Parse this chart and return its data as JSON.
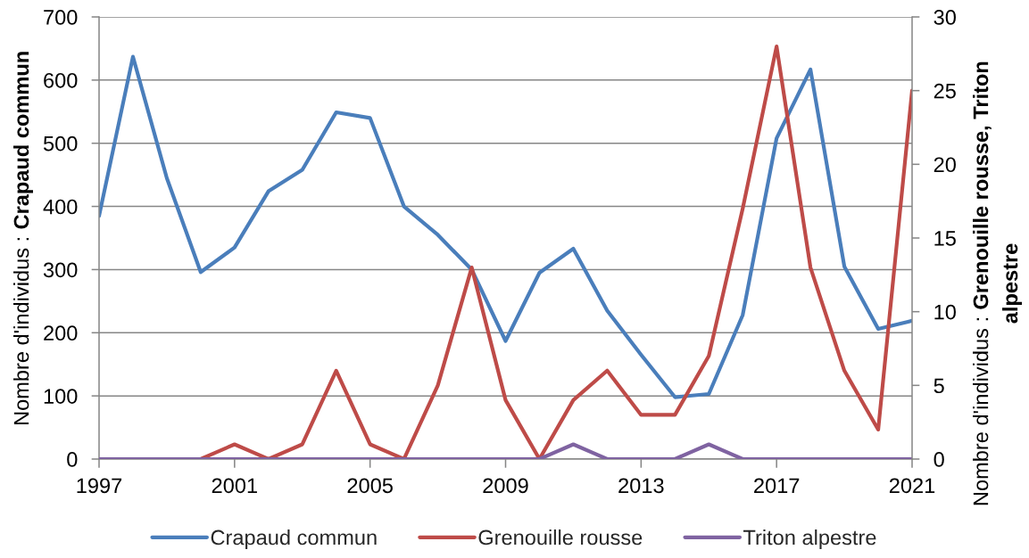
{
  "chart_data": {
    "type": "line",
    "x": [
      1997,
      1998,
      1999,
      2000,
      2001,
      2002,
      2003,
      2004,
      2005,
      2006,
      2007,
      2008,
      2009,
      2010,
      2011,
      2012,
      2013,
      2014,
      2015,
      2016,
      2017,
      2018,
      2019,
      2020,
      2021
    ],
    "xlim": [
      1997,
      2021
    ],
    "xticks": [
      1997,
      2001,
      2005,
      2009,
      2013,
      2017,
      2021
    ],
    "ylim": [
      0,
      700
    ],
    "yticks": [
      0,
      100,
      200,
      300,
      400,
      500,
      600,
      700
    ],
    "y2lim": [
      0,
      30
    ],
    "y2ticks": [
      0,
      5,
      10,
      15,
      20,
      25,
      30
    ],
    "ylabel": "Nombre d'individus : Crapaud commun",
    "y2label": "Nombre d'individus : Grenouille rousse, Triton alpestre",
    "grid": "y",
    "legend": "bottom",
    "line_style": "solid",
    "series": [
      {
        "name": "Crapaud commun",
        "color": "#4a7ebb",
        "axis": "y",
        "values": [
          385,
          637,
          445,
          296,
          335,
          424,
          458,
          549,
          540,
          400,
          355,
          300,
          187,
          295,
          333,
          235,
          165,
          98,
          103,
          228,
          508,
          617,
          305,
          206,
          219
        ]
      },
      {
        "name": "Grenouille rousse",
        "color": "#be4b48",
        "axis": "y2",
        "values": [
          null,
          null,
          null,
          0,
          1,
          0,
          1,
          6,
          1,
          0,
          5,
          13,
          4,
          0,
          4,
          6,
          3,
          3,
          7,
          17,
          28,
          13,
          6,
          2,
          25
        ]
      },
      {
        "name": "Triton alpestre",
        "color": "#7f63a1",
        "axis": "y2",
        "values": [
          0,
          0,
          0,
          0,
          0,
          0,
          0,
          0,
          0,
          0,
          0,
          0,
          0,
          0,
          1,
          0,
          0,
          0,
          1,
          0,
          0,
          0,
          0,
          0,
          0
        ]
      }
    ]
  }
}
